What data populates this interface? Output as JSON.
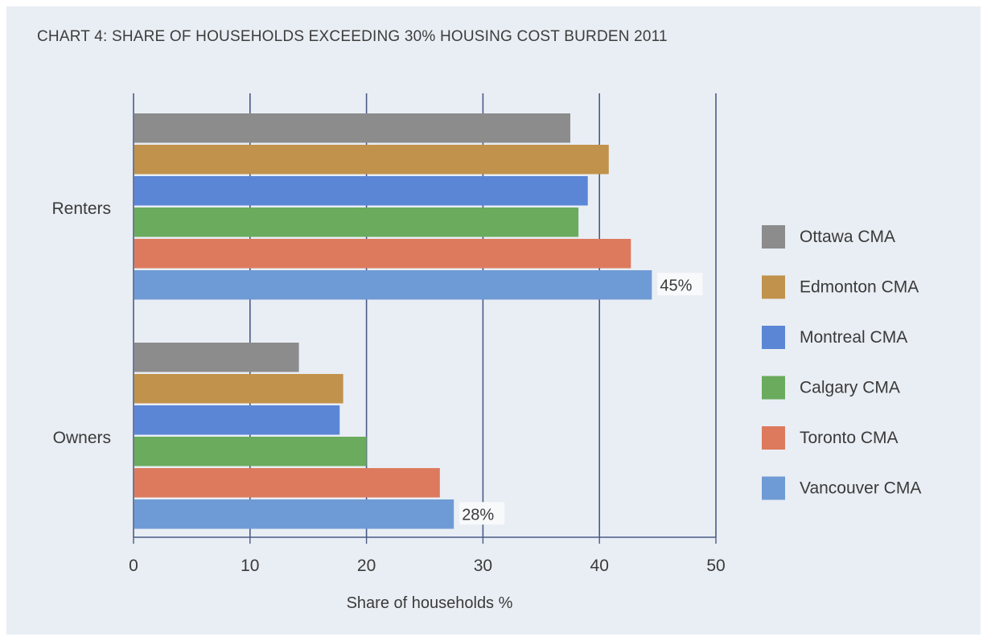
{
  "chart_data": {
    "type": "bar",
    "orientation": "horizontal",
    "title": "CHART 4:  SHARE OF HOUSEHOLDS EXCEEDING 30% HOUSING COST BURDEN 2011",
    "xlabel": "Share of households %",
    "ylabel": "",
    "xlim": [
      0,
      50
    ],
    "xticks": [
      "0",
      "10",
      "20",
      "30",
      "40",
      "50"
    ],
    "grid": true,
    "legend_position": "right",
    "categories": [
      "Renters",
      "Owners"
    ],
    "series": [
      {
        "name": "Ottawa CMA",
        "color": "#8c8c8c",
        "values": [
          37.5,
          14.2
        ]
      },
      {
        "name": "Edmonton CMA",
        "color": "#c1924b",
        "values": [
          40.8,
          18.0
        ]
      },
      {
        "name": "Montreal CMA",
        "color": "#5b86d6",
        "values": [
          39.0,
          17.7
        ]
      },
      {
        "name": "Calgary CMA",
        "color": "#6aab5d",
        "values": [
          38.2,
          20.0
        ]
      },
      {
        "name": "Toronto CMA",
        "color": "#dd7a5e",
        "values": [
          42.7,
          26.3
        ]
      },
      {
        "name": "Vancouver CMA",
        "color": "#6e9bd5",
        "values": [
          44.5,
          27.5
        ]
      }
    ],
    "annotations": [
      {
        "category": "Renters",
        "series": "Vancouver CMA",
        "text": "45%"
      },
      {
        "category": "Owners",
        "series": "Vancouver CMA",
        "text": "28%"
      }
    ]
  }
}
